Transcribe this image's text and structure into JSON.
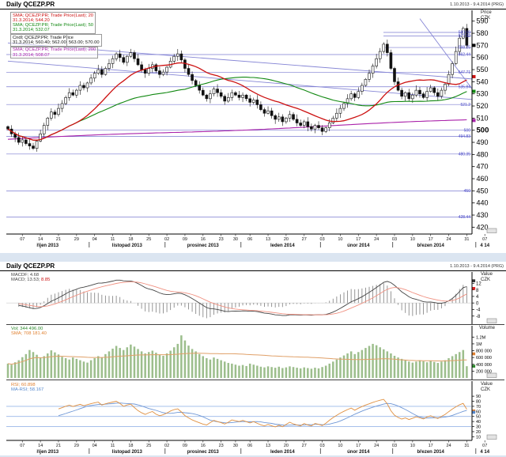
{
  "colors": {
    "separator": "#dbe5f1",
    "candle": "#111111",
    "sma20": "#cc1111",
    "sma50": "#118811",
    "sma200": "#aa22aa",
    "level_line": "#7b7bd0",
    "trend_line": "#8585d5",
    "axis_label_blue": "#4646c8",
    "macd_line": "#444444",
    "macd_signal": "#f09080",
    "macd_hist": "#8a8a8a",
    "volume_bar": "#9cbe8c",
    "volume_sma": "#e0a068",
    "rsi_line": "#e09040",
    "rsi_ma": "#6f97d6",
    "rsi_level": "#99b7e8"
  },
  "sections": {
    "top": {
      "title": "Daily QCEZP.PR",
      "range": "1.10.2013 - 9.4.2014 (PRG)"
    },
    "bottom": {
      "title": "Daily QCEZP.PR",
      "range": "1.10.2013 - 9.4.2014 (PRG)"
    }
  },
  "price_panel": {
    "unit1": "Price",
    "unit2": "CZK",
    "legend": [
      {
        "text": "SMA; QCEZP.PR; Trade Price(Last); 20",
        "color": "red"
      },
      {
        "text": "31.3.2014; 544.20",
        "color": "red"
      },
      {
        "text": "SMA; QCEZP.PR; Trade Price(Last); 50",
        "color": "green"
      },
      {
        "text": "31.3.2014; 532.07",
        "color": "green"
      },
      {
        "text": "Cndl; QCEZP.PR; Trade Price",
        "color": "black"
      },
      {
        "text": "31.3.2014; 560.40; 562.00; 563.00; 570.00",
        "color": "black"
      },
      {
        "text": "SMA; QCEZP.PR; Trade Price(Last); 200",
        "color": "magenta"
      },
      {
        "text": "31.3.2014; 508.07",
        "color": "magenta"
      }
    ],
    "ticks": [
      590,
      580,
      570,
      560,
      550,
      540,
      530,
      520,
      510,
      500,
      490,
      480,
      470,
      460,
      450,
      440,
      430,
      420
    ],
    "bold_tick": 500,
    "levels": [
      {
        "v": 580.69,
        "label": "580.69",
        "short": true
      },
      {
        "v": 577.82,
        "label": "577.82",
        "short": true
      },
      {
        "v": 568.25,
        "label": "568.25",
        "short": true
      },
      {
        "v": 562.44,
        "label": "562.44"
      },
      {
        "v": 547.71,
        "label": "547.71"
      },
      {
        "v": 535.84,
        "label": "535.84"
      },
      {
        "v": 521.2,
        "label": "521.2"
      },
      {
        "v": 500,
        "label": "500"
      },
      {
        "v": 494.83,
        "label": "494.83"
      },
      {
        "v": 480.35,
        "label": "480.35"
      },
      {
        "v": 450,
        "label": "450"
      },
      {
        "v": 428.44,
        "label": "428.44"
      }
    ],
    "axis_markers": [
      {
        "v": 570,
        "color": "#000000"
      },
      {
        "v": 544.2,
        "color": "#cc1111"
      },
      {
        "v": 532.07,
        "color": "#118811"
      },
      {
        "v": 508.07,
        "color": "#aa22aa"
      }
    ]
  },
  "macd_panel": {
    "legend1": "MACDF; 4.68",
    "legend2a": "MACD; 13.53; ",
    "legend2b": "8.85",
    "unit1": "Value",
    "unit2": "CZK",
    "ticks": [
      12,
      8,
      4,
      0,
      -4,
      -8
    ],
    "axis_markers": [
      {
        "v": 13.53,
        "color": "#333333"
      },
      {
        "v": 8.85,
        "color": "#dd2222"
      }
    ]
  },
  "volume_panel": {
    "legend1": "Vol; 344 496.00",
    "legend2": "SMA; 708 181.40",
    "unit1": "Volume",
    "ticks": [
      {
        "v": 1200,
        "label": "1.2M"
      },
      {
        "v": 1000,
        "label": "1M"
      },
      {
        "v": 800,
        "label": "800 000"
      },
      {
        "v": 600,
        "label": "600 000"
      },
      {
        "v": 400,
        "label": "400 000"
      },
      {
        "v": 200,
        "label": "200 000"
      }
    ],
    "axis_markers": [
      {
        "v": 344.5,
        "color": "#2e8b2e"
      },
      {
        "v": 708.2,
        "color": "#e08030"
      }
    ]
  },
  "rsi_panel": {
    "legend1": "RSI; 60.898",
    "legend2": "MA-RSI; 58.167",
    "unit1": "Value",
    "unit2": "CZK",
    "ticks": [
      90,
      80,
      70,
      60,
      50,
      40,
      30,
      20,
      10
    ],
    "levels": [
      70,
      50,
      30
    ],
    "axis_markers": [
      {
        "v": 60.9,
        "color": "#e08030"
      },
      {
        "v": 58.17,
        "color": "#5588cc"
      }
    ]
  },
  "x_axis": {
    "day_ticks": [
      {
        "i": 4,
        "l": "07"
      },
      {
        "i": 9,
        "l": "14"
      },
      {
        "i": 14,
        "l": "21"
      },
      {
        "i": 19,
        "l": "29"
      },
      {
        "i": 24,
        "l": "04"
      },
      {
        "i": 29,
        "l": "11"
      },
      {
        "i": 34,
        "l": "18"
      },
      {
        "i": 39,
        "l": "25"
      },
      {
        "i": 44,
        "l": "02"
      },
      {
        "i": 49,
        "l": "09"
      },
      {
        "i": 54,
        "l": "16"
      },
      {
        "i": 59,
        "l": "23"
      },
      {
        "i": 63,
        "l": "30"
      },
      {
        "i": 67,
        "l": "06"
      },
      {
        "i": 72,
        "l": "13"
      },
      {
        "i": 77,
        "l": "20"
      },
      {
        "i": 82,
        "l": "27"
      },
      {
        "i": 87,
        "l": "03"
      },
      {
        "i": 92,
        "l": "10"
      },
      {
        "i": 97,
        "l": "17"
      },
      {
        "i": 102,
        "l": "24"
      },
      {
        "i": 107,
        "l": "03"
      },
      {
        "i": 112,
        "l": "10"
      },
      {
        "i": 117,
        "l": "17"
      },
      {
        "i": 122,
        "l": "24"
      },
      {
        "i": 127,
        "l": "31"
      },
      {
        "i": 132,
        "l": "07"
      }
    ],
    "months": [
      {
        "i": 11,
        "l": "říjen 2013"
      },
      {
        "i": 33,
        "l": "listopad 2013"
      },
      {
        "i": 54,
        "l": "prosinec 2013"
      },
      {
        "i": 76,
        "l": "leden 2014"
      },
      {
        "i": 97,
        "l": "únor 2014"
      },
      {
        "i": 117,
        "l": "březen 2014"
      },
      {
        "i": 132,
        "l": "4 14"
      }
    ],
    "bounds": [
      22.5,
      43.5,
      64.5,
      86.5,
      106.5,
      129.5
    ]
  },
  "chart_data": [
    {
      "type": "candlestick",
      "name": "QCEZP.PR Trade Price",
      "interval": "daily",
      "x_start": "1.10.2013",
      "x_end": "9.4.2014",
      "ylim": [
        415,
        597
      ],
      "last_ohlc_label": "560.40; 562.00; 563.00; 570.00",
      "closes": [
        501,
        497,
        494,
        490,
        492,
        489,
        487,
        485,
        491,
        497,
        504,
        510,
        515,
        513,
        518,
        522,
        527,
        531,
        529,
        533,
        537,
        535,
        539,
        543,
        547,
        550,
        546,
        551,
        555,
        559,
        563,
        560,
        556,
        561,
        564,
        559,
        554,
        550,
        547,
        551,
        554,
        549,
        546,
        548,
        552,
        557,
        561,
        563,
        558,
        551,
        546,
        541,
        537,
        533,
        529,
        526,
        530,
        534,
        531,
        528,
        524,
        527,
        531,
        529,
        527,
        529,
        526,
        523,
        525,
        521,
        517,
        514,
        516,
        512,
        509,
        511,
        507,
        510,
        513,
        509,
        506,
        504,
        507,
        503,
        501,
        504,
        502,
        499,
        502,
        506,
        510,
        514,
        518,
        522,
        526,
        530,
        527,
        532,
        537,
        542,
        547,
        553,
        559,
        565,
        571,
        564,
        551,
        540,
        533,
        528,
        531,
        526,
        529,
        533,
        530,
        527,
        532,
        535,
        531,
        528,
        533,
        538,
        546,
        555,
        565,
        576,
        584,
        570
      ],
      "overlays": [
        {
          "name": "SMA 20",
          "current": 544.2
        },
        {
          "name": "SMA 50",
          "current": 532.07
        },
        {
          "name": "SMA 200",
          "current": 508.07
        }
      ],
      "trendlines": [
        {
          "i1": 0,
          "p1": 572,
          "i2": 134,
          "p2": 541
        },
        {
          "i1": 0,
          "p1": 557,
          "i2": 134,
          "p2": 524
        },
        {
          "i1": 114,
          "p1": 592,
          "i2": 131,
          "p2": 524
        }
      ]
    },
    {
      "type": "line",
      "name": "MACD 12-26-9",
      "current_macd": 13.53,
      "current_signal": 8.85,
      "current_hist": 4.68,
      "ylim": [
        -11,
        16
      ]
    },
    {
      "type": "bar",
      "name": "Volume",
      "ylim": [
        0,
        1300000
      ],
      "current": 344496.0,
      "sma_current": 708181.4,
      "sma_window": 60,
      "values_thousands": [
        420,
        390,
        460,
        520,
        610,
        700,
        820,
        760,
        680,
        590,
        640,
        720,
        810,
        750,
        690,
        620,
        580,
        540,
        600,
        560,
        520,
        480,
        450,
        520,
        580,
        640,
        600,
        700,
        780,
        860,
        940,
        880,
        820,
        900,
        980,
        920,
        850,
        780,
        720,
        760,
        800,
        740,
        680,
        650,
        720,
        800,
        900,
        1000,
        1250,
        1100,
        950,
        850,
        780,
        700,
        640,
        580,
        540,
        600,
        560,
        520,
        480,
        440,
        420,
        390,
        360,
        380,
        350,
        420,
        390,
        360,
        330,
        310,
        340,
        320,
        300,
        330,
        290,
        310,
        340,
        320,
        300,
        280,
        310,
        290,
        270,
        300,
        280,
        320,
        360,
        420,
        480,
        540,
        600,
        660,
        720,
        780,
        700,
        760,
        820,
        880,
        940,
        1000,
        960,
        900,
        840,
        780,
        720,
        650,
        600,
        560,
        520,
        480,
        450,
        480,
        520,
        490,
        460,
        500,
        470,
        440,
        480,
        520,
        580,
        640,
        700,
        760,
        820,
        344.5
      ]
    },
    {
      "type": "line",
      "name": "RSI 14",
      "current": 60.898,
      "ma_current": 58.167,
      "ylim": [
        0,
        100
      ],
      "levels": [
        70,
        50,
        30
      ]
    }
  ]
}
